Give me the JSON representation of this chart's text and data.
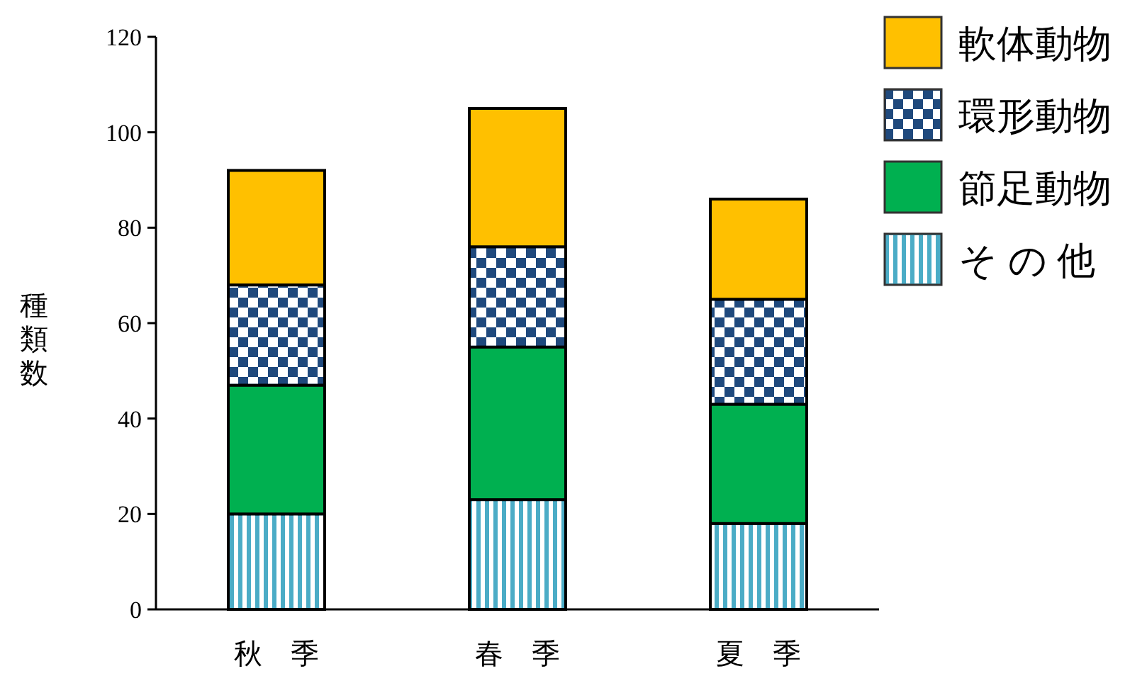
{
  "chart_data": {
    "type": "bar",
    "stacked": true,
    "ylabel": "種類数",
    "categories": [
      "秋　季",
      "春　季",
      "夏　季"
    ],
    "series": [
      {
        "name": "そ の 他",
        "color": "#4bacc6",
        "values": [
          20,
          23,
          18
        ]
      },
      {
        "name": "節足動物",
        "color": "#00b050",
        "values": [
          27,
          32,
          25
        ]
      },
      {
        "name": "環形動物",
        "color": "#1f497d",
        "values": [
          21,
          21,
          22
        ]
      },
      {
        "name": "軟体動物",
        "color": "#ffc000",
        "values": [
          24,
          29,
          21
        ]
      }
    ],
    "ylim": [
      0,
      120
    ],
    "yticks": [
      0,
      20,
      40,
      60,
      80,
      100,
      120
    ],
    "grid": false,
    "legend": "top right"
  }
}
